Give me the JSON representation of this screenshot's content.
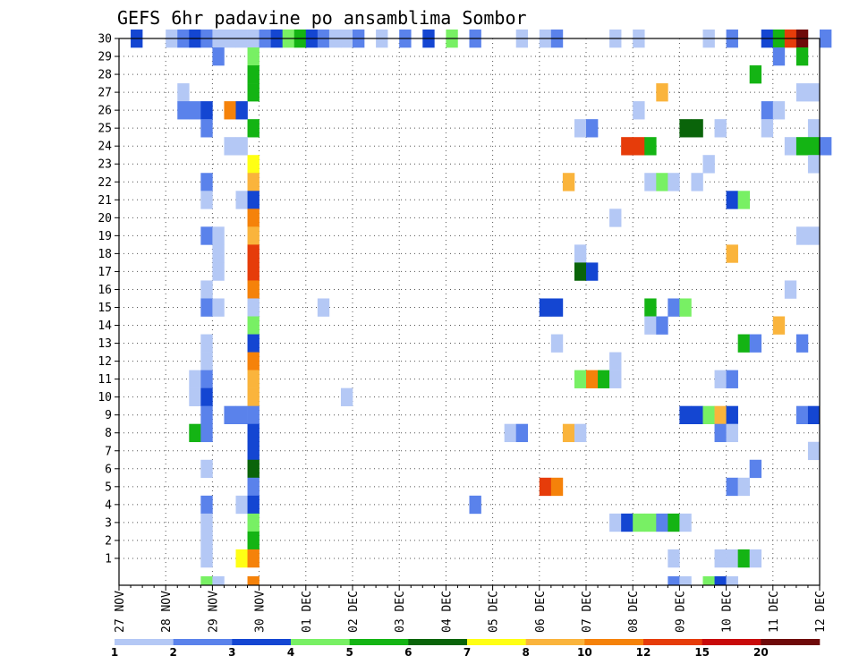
{
  "chart_data": {
    "type": "heatmap",
    "title": "GEFS 6hr padavine po ansamblima Sombor",
    "xlabel": "",
    "ylabel": "",
    "x_tick_labels": [
      "27 NOV",
      "28 NOV",
      "29 NOV",
      "30 NOV",
      "01 DEC",
      "02 DEC",
      "03 DEC",
      "04 DEC",
      "05 DEC",
      "06 DEC",
      "07 DEC",
      "08 DEC",
      "09 DEC",
      "10 DEC",
      "11 DEC",
      "12 DEC"
    ],
    "y_tick_labels": [
      "1",
      "2",
      "3",
      "4",
      "5",
      "6",
      "7",
      "8",
      "9",
      "10",
      "11",
      "12",
      "13",
      "14",
      "15",
      "16",
      "17",
      "18",
      "19",
      "20",
      "21",
      "22",
      "23",
      "24",
      "25",
      "26",
      "27",
      "28",
      "29",
      "30"
    ],
    "xlim_days": [
      27,
      42
    ],
    "ylim": [
      0,
      30
    ],
    "grid": true,
    "time_step_hours": 6,
    "legend": {
      "placement": "bottom",
      "labels": [
        "1",
        "2",
        "3",
        "4",
        "5",
        "6",
        "7",
        "8",
        "10",
        "12",
        "15",
        "20"
      ],
      "colors": [
        "#b4c8f5",
        "#5a82eb",
        "#1446d2",
        "#78f064",
        "#14b414",
        "#0a640a",
        "#ffff14",
        "#fab43c",
        "#f5820a",
        "#e63c0a",
        "#c80a0a",
        "#6e0a0a"
      ]
    },
    "points_format": "[column_index, row, class]: column_index counts 6-hour steps from 27 NOV 00Z; row 0 is the bottom row below ensemble 1; class 1..12 indexes legend.colors",
    "points": [
      [
        1,
        30,
        3
      ],
      [
        4,
        30,
        1
      ],
      [
        5,
        30,
        2
      ],
      [
        6,
        30,
        3
      ],
      [
        7,
        30,
        2
      ],
      [
        8,
        30,
        1
      ],
      [
        9,
        30,
        1
      ],
      [
        10,
        30,
        1
      ],
      [
        11,
        30,
        1
      ],
      [
        12,
        30,
        2
      ],
      [
        13,
        30,
        3
      ],
      [
        14,
        30,
        4
      ],
      [
        15,
        30,
        5
      ],
      [
        16,
        30,
        3
      ],
      [
        17,
        30,
        2
      ],
      [
        18,
        30,
        1
      ],
      [
        19,
        30,
        1
      ],
      [
        20,
        30,
        2
      ],
      [
        22,
        30,
        1
      ],
      [
        24,
        30,
        2
      ],
      [
        26,
        30,
        3
      ],
      [
        28,
        30,
        4
      ],
      [
        30,
        30,
        2
      ],
      [
        34,
        30,
        1
      ],
      [
        36,
        30,
        1
      ],
      [
        37,
        30,
        2
      ],
      [
        42,
        30,
        1
      ],
      [
        44,
        30,
        1
      ],
      [
        50,
        30,
        1
      ],
      [
        52,
        30,
        2
      ],
      [
        55,
        30,
        3
      ],
      [
        56,
        30,
        5
      ],
      [
        57,
        30,
        10
      ],
      [
        58,
        30,
        12
      ],
      [
        60,
        30,
        2
      ],
      [
        8,
        29,
        2
      ],
      [
        11,
        29,
        4
      ],
      [
        56,
        29,
        2
      ],
      [
        58,
        29,
        5
      ],
      [
        11,
        28,
        5
      ],
      [
        54,
        28,
        5
      ],
      [
        5,
        27,
        1
      ],
      [
        11,
        27,
        5
      ],
      [
        46,
        27,
        8
      ],
      [
        58,
        27,
        1
      ],
      [
        59,
        27,
        1
      ],
      [
        5,
        26,
        2
      ],
      [
        6,
        26,
        2
      ],
      [
        7,
        26,
        3
      ],
      [
        9,
        26,
        9
      ],
      [
        10,
        26,
        3
      ],
      [
        44,
        26,
        1
      ],
      [
        55,
        26,
        2
      ],
      [
        56,
        26,
        1
      ],
      [
        7,
        25,
        2
      ],
      [
        11,
        25,
        5
      ],
      [
        39,
        25,
        1
      ],
      [
        40,
        25,
        2
      ],
      [
        48,
        25,
        6
      ],
      [
        49,
        25,
        6
      ],
      [
        51,
        25,
        1
      ],
      [
        55,
        25,
        1
      ],
      [
        59,
        25,
        1
      ],
      [
        9,
        24,
        1
      ],
      [
        10,
        24,
        1
      ],
      [
        43,
        24,
        10
      ],
      [
        44,
        24,
        10
      ],
      [
        45,
        24,
        5
      ],
      [
        57,
        24,
        1
      ],
      [
        58,
        24,
        5
      ],
      [
        59,
        24,
        5
      ],
      [
        60,
        24,
        2
      ],
      [
        11,
        23,
        7
      ],
      [
        50,
        23,
        1
      ],
      [
        59,
        23,
        1
      ],
      [
        7,
        22,
        2
      ],
      [
        11,
        22,
        8
      ],
      [
        38,
        22,
        8
      ],
      [
        45,
        22,
        1
      ],
      [
        46,
        22,
        4
      ],
      [
        47,
        22,
        1
      ],
      [
        49,
        22,
        1
      ],
      [
        7,
        21,
        1
      ],
      [
        10,
        21,
        1
      ],
      [
        11,
        21,
        3
      ],
      [
        52,
        21,
        3
      ],
      [
        53,
        21,
        4
      ],
      [
        11,
        20,
        9
      ],
      [
        42,
        20,
        1
      ],
      [
        7,
        19,
        2
      ],
      [
        8,
        19,
        1
      ],
      [
        11,
        19,
        8
      ],
      [
        58,
        19,
        1
      ],
      [
        59,
        19,
        1
      ],
      [
        8,
        18,
        1
      ],
      [
        11,
        18,
        10
      ],
      [
        39,
        18,
        1
      ],
      [
        52,
        18,
        8
      ],
      [
        8,
        17,
        1
      ],
      [
        11,
        17,
        10
      ],
      [
        39,
        17,
        6
      ],
      [
        40,
        17,
        3
      ],
      [
        7,
        16,
        1
      ],
      [
        11,
        16,
        9
      ],
      [
        57,
        16,
        1
      ],
      [
        7,
        15,
        2
      ],
      [
        8,
        15,
        1
      ],
      [
        11,
        15,
        1
      ],
      [
        17,
        15,
        1
      ],
      [
        36,
        15,
        3
      ],
      [
        37,
        15,
        3
      ],
      [
        45,
        15,
        5
      ],
      [
        47,
        15,
        2
      ],
      [
        48,
        15,
        4
      ],
      [
        11,
        14,
        4
      ],
      [
        45,
        14,
        1
      ],
      [
        46,
        14,
        2
      ],
      [
        56,
        14,
        8
      ],
      [
        7,
        13,
        1
      ],
      [
        11,
        13,
        3
      ],
      [
        37,
        13,
        1
      ],
      [
        53,
        13,
        5
      ],
      [
        54,
        13,
        2
      ],
      [
        58,
        13,
        2
      ],
      [
        7,
        12,
        1
      ],
      [
        11,
        12,
        9
      ],
      [
        42,
        12,
        1
      ],
      [
        6,
        11,
        1
      ],
      [
        7,
        11,
        2
      ],
      [
        11,
        11,
        8
      ],
      [
        39,
        11,
        4
      ],
      [
        40,
        11,
        9
      ],
      [
        41,
        11,
        5
      ],
      [
        42,
        11,
        1
      ],
      [
        51,
        11,
        1
      ],
      [
        52,
        11,
        2
      ],
      [
        6,
        10,
        1
      ],
      [
        7,
        10,
        3
      ],
      [
        11,
        10,
        8
      ],
      [
        19,
        10,
        1
      ],
      [
        7,
        9,
        2
      ],
      [
        9,
        9,
        2
      ],
      [
        10,
        9,
        2
      ],
      [
        11,
        9,
        2
      ],
      [
        48,
        9,
        3
      ],
      [
        49,
        9,
        3
      ],
      [
        50,
        9,
        4
      ],
      [
        51,
        9,
        8
      ],
      [
        52,
        9,
        3
      ],
      [
        58,
        9,
        2
      ],
      [
        59,
        9,
        3
      ],
      [
        6,
        8,
        5
      ],
      [
        7,
        8,
        2
      ],
      [
        11,
        8,
        3
      ],
      [
        33,
        8,
        1
      ],
      [
        34,
        8,
        2
      ],
      [
        38,
        8,
        8
      ],
      [
        39,
        8,
        1
      ],
      [
        51,
        8,
        2
      ],
      [
        52,
        8,
        1
      ],
      [
        11,
        7,
        3
      ],
      [
        59,
        7,
        1
      ],
      [
        7,
        6,
        1
      ],
      [
        11,
        6,
        6
      ],
      [
        54,
        6,
        2
      ],
      [
        11,
        5,
        2
      ],
      [
        36,
        5,
        10
      ],
      [
        37,
        5,
        9
      ],
      [
        52,
        5,
        2
      ],
      [
        53,
        5,
        1
      ],
      [
        7,
        4,
        2
      ],
      [
        10,
        4,
        1
      ],
      [
        11,
        4,
        3
      ],
      [
        30,
        4,
        2
      ],
      [
        7,
        3,
        1
      ],
      [
        11,
        3,
        4
      ],
      [
        42,
        3,
        1
      ],
      [
        43,
        3,
        3
      ],
      [
        44,
        3,
        4
      ],
      [
        45,
        3,
        4
      ],
      [
        46,
        3,
        2
      ],
      [
        47,
        3,
        5
      ],
      [
        48,
        3,
        1
      ],
      [
        7,
        2,
        1
      ],
      [
        11,
        2,
        5
      ],
      [
        7,
        1,
        1
      ],
      [
        10,
        1,
        7
      ],
      [
        11,
        1,
        9
      ],
      [
        47,
        1,
        1
      ],
      [
        51,
        1,
        1
      ],
      [
        52,
        1,
        1
      ],
      [
        53,
        1,
        5
      ],
      [
        54,
        1,
        1
      ],
      [
        7,
        0,
        4
      ],
      [
        8,
        0,
        1
      ],
      [
        11,
        0,
        9
      ],
      [
        47,
        0,
        2
      ],
      [
        48,
        0,
        1
      ],
      [
        50,
        0,
        4
      ],
      [
        51,
        0,
        3
      ],
      [
        52,
        0,
        1
      ]
    ]
  }
}
